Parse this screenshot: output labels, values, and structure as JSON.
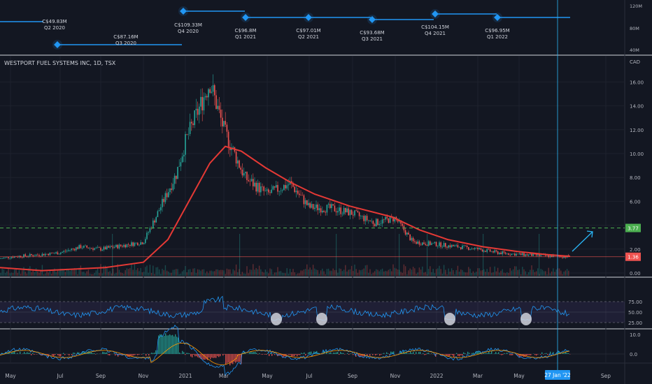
{
  "chart_data": {
    "type": "candlestick",
    "symbol_title": "WESTPORT FUEL SYSTEMS INC, 1D, TSX",
    "currency": "CAD",
    "price_ticks": [
      "16.00",
      "14.00",
      "12.00",
      "10.00",
      "8.00",
      "6.00",
      "4.00",
      "2.00",
      "0.00"
    ],
    "time_axis": [
      "May",
      "Jul",
      "Sep",
      "Nov",
      "2021",
      "Mar",
      "May",
      "Jul",
      "Sep",
      "Nov",
      "2022",
      "Mar",
      "May",
      "Sep"
    ],
    "crosshair_date": "27 Jan '22",
    "horizontal_level": {
      "value": 3.77,
      "label": "3.77",
      "color": "#4caf50",
      "style": "dashed"
    },
    "last_price": {
      "value": 1.36,
      "label": "1.36",
      "color": "#ef5350"
    },
    "moving_average_color": "#e53935",
    "revenue": {
      "axis_ticks": [
        "120M",
        "80M",
        "40M"
      ],
      "items": [
        {
          "value": "C$49.83M",
          "period": "Q2 2020"
        },
        {
          "value": "C$87.16M",
          "period": "Q3 2020"
        },
        {
          "value": "C$109.33M",
          "period": "Q4 2020"
        },
        {
          "value": "C$96.8M",
          "period": "Q1 2021"
        },
        {
          "value": "C$97.01M",
          "period": "Q2 2021"
        },
        {
          "value": "C$93.68M",
          "period": "Q3 2021"
        },
        {
          "value": "C$104.15M",
          "period": "Q4 2021"
        },
        {
          "value": "C$96.95M",
          "period": "Q1 2022"
        }
      ]
    },
    "price_series_approx": [
      {
        "t": "Apr",
        "v": 1.2
      },
      {
        "t": "May",
        "v": 1.35
      },
      {
        "t": "Jun",
        "v": 1.5
      },
      {
        "t": "Jul",
        "v": 1.7
      },
      {
        "t": "Aug",
        "v": 2.2
      },
      {
        "t": "Sep",
        "v": 2.0
      },
      {
        "t": "Oct",
        "v": 2.3
      },
      {
        "t": "Nov",
        "v": 2.6
      },
      {
        "t": "Nov end",
        "v": 4.6
      },
      {
        "t": "Dec",
        "v": 8.3
      },
      {
        "t": "Jan 2021",
        "v": 11.0
      },
      {
        "t": "Feb",
        "v": 16.0
      },
      {
        "t": "Mar",
        "v": 12.0
      },
      {
        "t": "Apr",
        "v": 8.0
      },
      {
        "t": "May",
        "v": 6.6
      },
      {
        "t": "Jun",
        "v": 7.5
      },
      {
        "t": "Jul",
        "v": 5.5
      },
      {
        "t": "Aug",
        "v": 5.4
      },
      {
        "t": "Sep",
        "v": 5.0
      },
      {
        "t": "Oct",
        "v": 4.2
      },
      {
        "t": "Nov",
        "v": 4.6
      },
      {
        "t": "Dec",
        "v": 2.6
      },
      {
        "t": "2022",
        "v": 2.4
      },
      {
        "t": "Feb",
        "v": 2.2
      },
      {
        "t": "Mar",
        "v": 2.0
      },
      {
        "t": "Apr",
        "v": 1.7
      },
      {
        "t": "May",
        "v": 1.55
      },
      {
        "t": "Jun",
        "v": 1.45
      },
      {
        "t": "Jul",
        "v": 1.36
      }
    ],
    "rsi": {
      "levels": [
        "75.00",
        "50.00",
        "25.00"
      ],
      "line_color": "#2196f3",
      "band_color": "#7e57c2",
      "marked_oversold_points": 4
    },
    "macd": {
      "levels": [
        "10.0",
        "0.0"
      ],
      "macd_color": "#2196f3",
      "signal_color": "#ff9800"
    }
  }
}
